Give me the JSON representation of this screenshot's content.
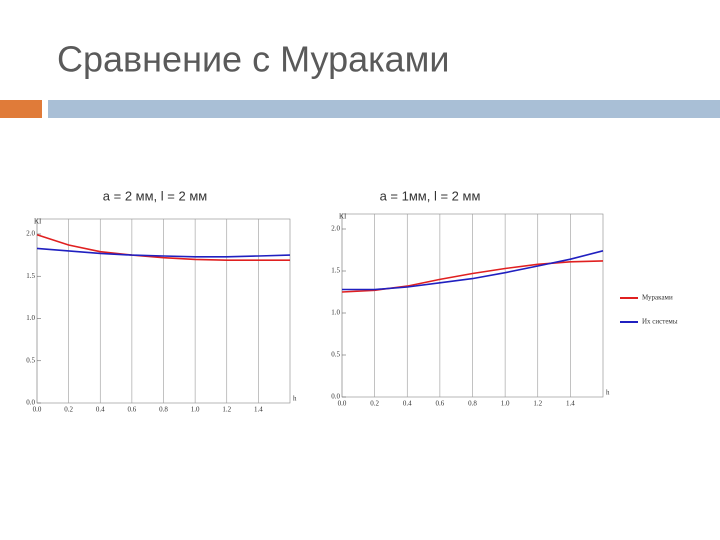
{
  "title": "Сравнение с Мураками",
  "chart_data": [
    {
      "type": "line",
      "title": "a = 2 мм, l = 2 мм",
      "ylabel": "KI",
      "xlabel": "h",
      "x": [
        0,
        0.2,
        0.4,
        0.6,
        0.8,
        1.0,
        1.2,
        1.4,
        1.6
      ],
      "series": [
        {
          "color": "#e02020",
          "values": [
            1.99,
            1.87,
            1.79,
            1.75,
            1.72,
            1.7,
            1.69,
            1.69,
            1.69
          ]
        },
        {
          "color": "#2020c0",
          "values": [
            1.83,
            1.8,
            1.77,
            1.75,
            1.74,
            1.73,
            1.73,
            1.74,
            1.75
          ]
        }
      ],
      "xlim": [
        0,
        1.6
      ],
      "ylim": [
        0,
        2.0
      ],
      "xticks": [
        {
          "value": 0,
          "label": "0.0"
        },
        0.2,
        0.4,
        0.6,
        0.8,
        {
          "value": 1,
          "label": "1.0"
        },
        1.2,
        1.4
      ],
      "yticks": [
        {
          "value": 0,
          "label": "0.0"
        },
        0.5,
        {
          "value": 1,
          "label": "1.0"
        },
        1.5,
        {
          "value": 2,
          "label": "2.0"
        }
      ],
      "grid": true
    },
    {
      "type": "line",
      "title": "a = 1мм, l = 2 мм",
      "ylabel": "KI",
      "xlabel": "h",
      "x": [
        0,
        0.2,
        0.4,
        0.6,
        0.8,
        1.0,
        1.2,
        1.4,
        1.6
      ],
      "series": [
        {
          "name": "Мураками",
          "color": "#e02020",
          "values": [
            1.25,
            1.27,
            1.32,
            1.4,
            1.47,
            1.53,
            1.58,
            1.61,
            1.62
          ]
        },
        {
          "name": "Их системы",
          "color": "#2020c0",
          "values": [
            1.28,
            1.28,
            1.31,
            1.36,
            1.41,
            1.48,
            1.56,
            1.64,
            1.74
          ]
        }
      ],
      "xlim": [
        0,
        1.6
      ],
      "ylim": [
        0,
        2.0
      ],
      "xticks": [
        {
          "value": 0,
          "label": "0.0"
        },
        0.2,
        0.4,
        0.6,
        0.8,
        {
          "value": 1,
          "label": "1.0"
        },
        1.2,
        1.4
      ],
      "yticks": [
        {
          "value": 0,
          "label": "0.0"
        },
        0.5,
        {
          "value": 1,
          "label": "1.0"
        },
        1.5,
        {
          "value": 2,
          "label": "2.0"
        }
      ],
      "grid": true,
      "legend": "right"
    }
  ]
}
